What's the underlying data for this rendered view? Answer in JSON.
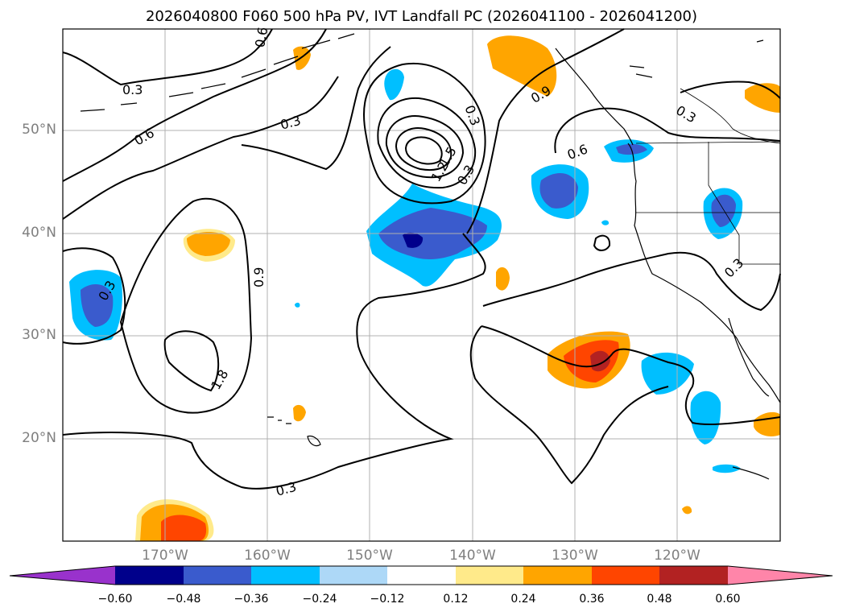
{
  "title": "2026040800 F060 500 hPa PV, IVT Landfall PC (2026041100 - 2026041200)",
  "lat_labels": [
    "50°N",
    "40°N",
    "30°N",
    "20°N"
  ],
  "lon_labels": [
    "170°W",
    "160°W",
    "150°W",
    "140°W",
    "130°W",
    "120°W"
  ],
  "contour_labels": [
    "0.3",
    "0.6",
    "0.3",
    "0.6",
    "0.3",
    "0.9",
    "1.8",
    "1.5",
    "1.2",
    "0.3",
    "0.3",
    "0.6",
    "0.3",
    "0.9",
    "0.3",
    "0.3",
    "0.3"
  ],
  "colorbar": {
    "ticks": [
      "−0.60",
      "−0.48",
      "−0.36",
      "−0.24",
      "−0.12",
      "0.12",
      "0.24",
      "0.36",
      "0.48",
      "0.60"
    ],
    "colors": [
      "#9932cc",
      "#00008b",
      "#3a5bcd",
      "#00bfff",
      "#add8f7",
      "#ffffff",
      "#ffea8a",
      "#ffa500",
      "#ff4500",
      "#b22222",
      "#ff85a9"
    ]
  },
  "colors": {
    "border": "#000000",
    "grid": "#b0b0b0",
    "axis_label": "#7f7f7f"
  }
}
